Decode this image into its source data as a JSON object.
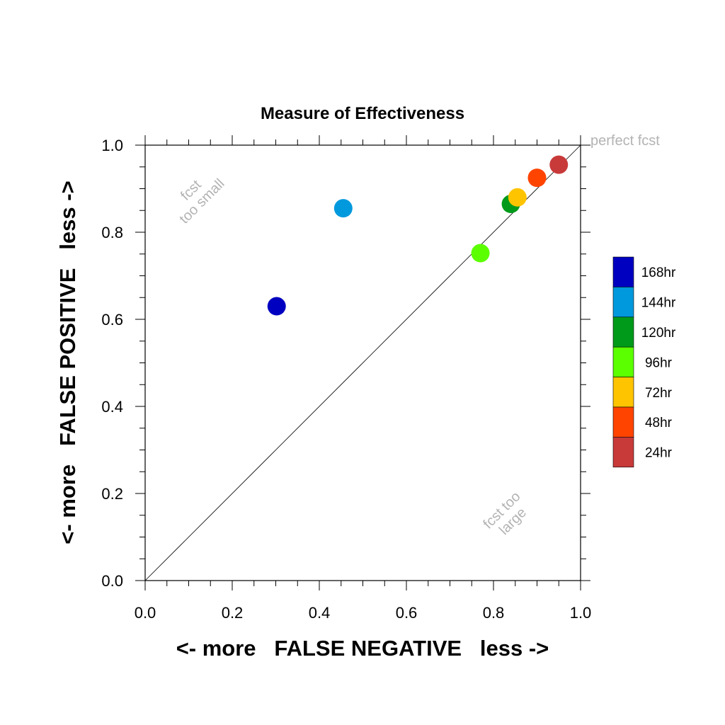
{
  "chart_data": {
    "type": "scatter",
    "title": "Measure of Effectiveness",
    "xlabel": "<- more   FALSE NEGATIVE   less ->",
    "ylabel": "<- more   FALSE POSITIVE   less ->",
    "xlim": [
      0.0,
      1.0
    ],
    "ylim": [
      0.0,
      1.0
    ],
    "x_ticks": [
      "0.0",
      "0.2",
      "0.4",
      "0.6",
      "0.8",
      "1.0"
    ],
    "y_ticks": [
      "0.0",
      "0.2",
      "0.4",
      "0.6",
      "0.8",
      "1.0"
    ],
    "grid": false,
    "diagonal_reference_line": true,
    "legend_position": "right",
    "annotations": {
      "top_right": "perfect fcst",
      "upper_left_line1": "fcst",
      "upper_left_line2": "too small",
      "lower_right_line1": "fcst too",
      "lower_right_line2": "large"
    },
    "series": [
      {
        "name": "168hr",
        "color": "#0000c0",
        "x": 0.302,
        "y": 0.63
      },
      {
        "name": "144hr",
        "color": "#0099dd",
        "x": 0.455,
        "y": 0.855
      },
      {
        "name": "120hr",
        "color": "#009a1a",
        "x": 0.84,
        "y": 0.865
      },
      {
        "name": "96hr",
        "color": "#5cff00",
        "x": 0.77,
        "y": 0.752
      },
      {
        "name": "72hr",
        "color": "#ffc400",
        "x": 0.855,
        "y": 0.88
      },
      {
        "name": "48hr",
        "color": "#ff4400",
        "x": 0.9,
        "y": 0.925
      },
      {
        "name": "24hr",
        "color": "#c83a3a",
        "x": 0.95,
        "y": 0.955
      }
    ]
  }
}
